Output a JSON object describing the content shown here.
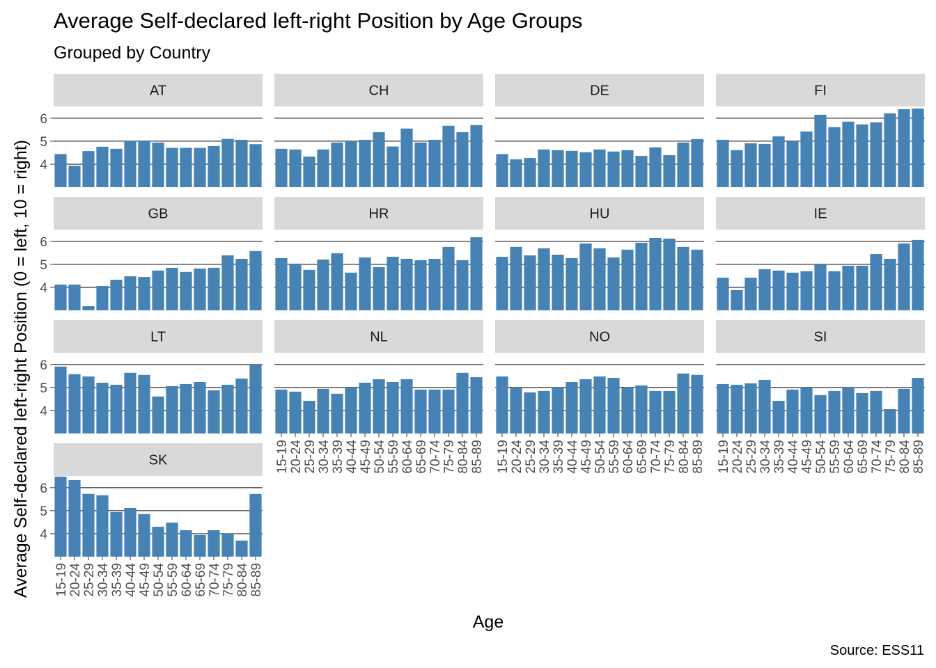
{
  "chart_data": {
    "type": "bar",
    "title": "Average Self-declared left-right Position by Age Groups",
    "subtitle": "Grouped by Country",
    "xlabel": "Age",
    "ylabel": "Average Self-declared left-right Position (0 = left, 10 = right)",
    "caption": "Source: ESS11",
    "bar_color": "#4682B4",
    "strip_color": "#D9D9D9",
    "grid": true,
    "ylim": [
      3.0,
      6.45
    ],
    "yticks": [
      4,
      5,
      6
    ],
    "categories": [
      "15-19",
      "20-24",
      "25-29",
      "30-34",
      "35-39",
      "40-44",
      "45-49",
      "50-54",
      "55-59",
      "60-64",
      "65-69",
      "70-74",
      "75-79",
      "80-84",
      "85-89"
    ],
    "facets": [
      {
        "label": "AT",
        "values": [
          4.44,
          3.93,
          4.57,
          4.76,
          4.67,
          5.03,
          5.03,
          4.94,
          4.71,
          4.71,
          4.71,
          4.79,
          5.1,
          5.06,
          4.87
        ]
      },
      {
        "label": "CH",
        "values": [
          4.67,
          4.64,
          4.33,
          4.64,
          4.94,
          5.0,
          5.06,
          5.39,
          4.77,
          5.55,
          4.94,
          5.06,
          5.67,
          5.39,
          5.7
        ]
      },
      {
        "label": "DE",
        "values": [
          4.44,
          4.21,
          4.27,
          4.64,
          4.61,
          4.58,
          4.52,
          4.64,
          4.55,
          4.61,
          4.36,
          4.73,
          4.39,
          4.94,
          5.09
        ]
      },
      {
        "label": "FI",
        "values": [
          5.06,
          4.61,
          4.91,
          4.88,
          5.21,
          5.0,
          5.42,
          6.15,
          5.61,
          5.85,
          5.73,
          5.82,
          6.21,
          6.39,
          6.42
        ]
      },
      {
        "label": "GB",
        "values": [
          4.12,
          4.12,
          3.18,
          4.06,
          4.33,
          4.48,
          4.45,
          4.73,
          4.85,
          4.67,
          4.82,
          4.85,
          5.39,
          5.24,
          5.58
        ]
      },
      {
        "label": "HR",
        "values": [
          5.27,
          5.03,
          4.76,
          5.21,
          5.48,
          4.64,
          5.3,
          4.88,
          5.33,
          5.24,
          5.18,
          5.24,
          5.76,
          5.18,
          6.18
        ]
      },
      {
        "label": "HU",
        "values": [
          5.33,
          5.76,
          5.39,
          5.7,
          5.42,
          5.27,
          5.91,
          5.7,
          5.3,
          5.64,
          5.94,
          6.15,
          6.12,
          5.76,
          5.64
        ]
      },
      {
        "label": "IE",
        "values": [
          4.42,
          3.88,
          4.42,
          4.79,
          4.73,
          4.64,
          4.7,
          5.0,
          4.7,
          4.94,
          4.94,
          5.45,
          5.24,
          5.91,
          6.06
        ]
      },
      {
        "label": "LT",
        "values": [
          5.91,
          5.58,
          5.48,
          5.21,
          5.12,
          5.64,
          5.55,
          4.61,
          5.06,
          5.15,
          5.24,
          4.88,
          5.12,
          5.39,
          6.0
        ]
      },
      {
        "label": "NL",
        "values": [
          4.91,
          4.82,
          4.42,
          4.94,
          4.73,
          5.0,
          5.21,
          5.36,
          5.24,
          5.36,
          4.91,
          4.91,
          4.91,
          5.64,
          5.45
        ]
      },
      {
        "label": "NO",
        "values": [
          5.48,
          5.0,
          4.79,
          4.85,
          5.0,
          5.24,
          5.36,
          5.48,
          5.42,
          5.0,
          5.09,
          4.85,
          4.85,
          5.61,
          5.55
        ]
      },
      {
        "label": "SI",
        "values": [
          5.15,
          5.12,
          5.18,
          5.33,
          4.42,
          4.91,
          5.0,
          4.67,
          4.85,
          5.03,
          4.76,
          4.85,
          4.06,
          4.94,
          5.42
        ]
      },
      {
        "label": "SK",
        "values": [
          6.48,
          6.33,
          5.73,
          5.67,
          4.94,
          5.12,
          4.85,
          4.3,
          4.48,
          4.15,
          3.94,
          4.15,
          4.0,
          3.7,
          5.73
        ]
      }
    ]
  }
}
